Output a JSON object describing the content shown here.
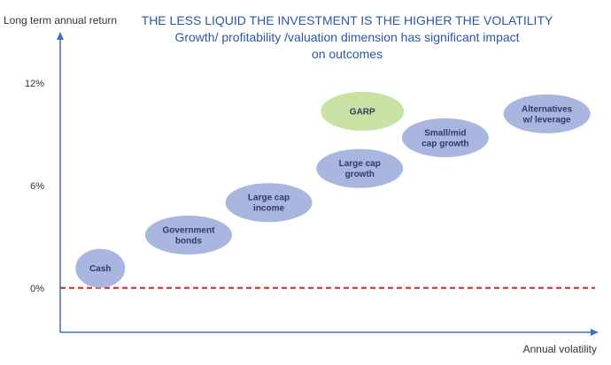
{
  "chart_data": {
    "type": "scatter",
    "title_lines": [
      "THE LESS LIQUID THE INVESTMENT IS THE HIGHER THE VOLATILITY",
      "Growth/ profitability /valuation dimension has significant impact",
      "on outcomes"
    ],
    "xlabel": "Annual volatility",
    "ylabel": "Long term annual return",
    "y_ticks": [
      {
        "value": 0,
        "label": "0%"
      },
      {
        "value": 6,
        "label": "6%"
      },
      {
        "value": 12,
        "label": "12%"
      }
    ],
    "ylim": [
      -2.6,
      14.8
    ],
    "xlim": [
      0,
      10
    ],
    "grid": false,
    "reference_line": {
      "value": 0,
      "color": "#e02020",
      "style": "dashed"
    },
    "points": [
      {
        "lines": [
          "Cash"
        ],
        "x": 0.75,
        "y": 1.15,
        "color": "#a8b6e0"
      },
      {
        "lines": [
          "Government",
          "bonds"
        ],
        "x": 2.4,
        "y": 3.1,
        "color": "#a8b6e0"
      },
      {
        "lines": [
          "Large cap",
          "income"
        ],
        "x": 3.9,
        "y": 5.0,
        "color": "#a8b6e0"
      },
      {
        "lines": [
          "GARP"
        ],
        "x": 5.65,
        "y": 10.35,
        "color": "#c8e2a4"
      },
      {
        "lines": [
          "Large cap",
          "growth"
        ],
        "x": 5.6,
        "y": 7.0,
        "color": "#a8b6e0"
      },
      {
        "lines": [
          "Small/mid",
          "cap growth"
        ],
        "x": 7.2,
        "y": 8.8,
        "color": "#a8b6e0"
      },
      {
        "lines": [
          "Alternatives",
          "w/ leverage"
        ],
        "x": 9.1,
        "y": 10.2,
        "color": "#a8b6e0"
      }
    ]
  },
  "colors": {
    "title": "#2b56a8",
    "axis": "#3a6fc4",
    "bubble": "#a8b6e0",
    "highlight": "#c8e2a4"
  }
}
